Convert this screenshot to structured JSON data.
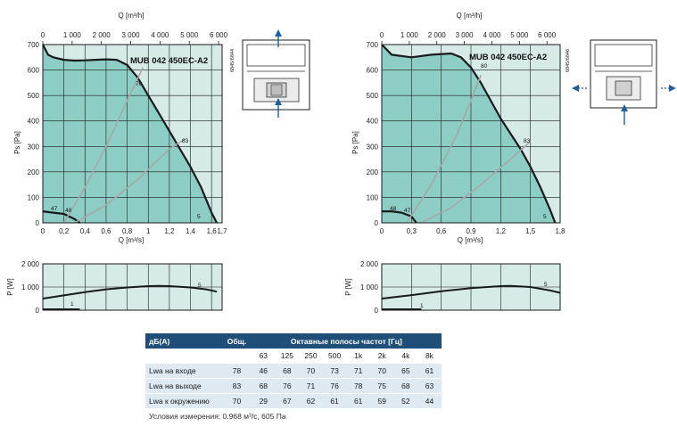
{
  "charts": [
    {
      "model_label": "MUB 042 450EC-A2",
      "code": "6845/6844",
      "q_top_label": "Q [m³/h]",
      "q_top_ticks": [
        "0",
        "1 000",
        "2 000",
        "3 000",
        "4 000",
        "5 000",
        "6 000"
      ],
      "ps_label": "Ps [Pa]",
      "ps_ticks": [
        "0",
        "100",
        "200",
        "300",
        "400",
        "500",
        "600",
        "700"
      ],
      "q_bottom_label": "Q [m³/s]",
      "q_bottom_ticks": [
        "0",
        "0,2",
        "0,4",
        "0,6",
        "0,8",
        "1",
        "1,2",
        "1,4",
        "1,6",
        "1,7"
      ],
      "p_label": "P [W]",
      "p_ticks": [
        "0",
        "1 000",
        "2 000"
      ],
      "labels": [
        "47",
        "48",
        "76",
        "83",
        "5",
        "5",
        "1"
      ]
    },
    {
      "model_label": "MUB 042 450EC-A2",
      "code": "6845/6846",
      "q_top_label": "Q [m³/h]",
      "q_top_ticks": [
        "0",
        "1 000",
        "2 000",
        "3 000",
        "4 000",
        "5 000",
        "6 000"
      ],
      "ps_label": "Ps [Pa]",
      "ps_ticks": [
        "0",
        "100",
        "200",
        "300",
        "400",
        "500",
        "600",
        "700"
      ],
      "q_bottom_label": "Q [m³/s]",
      "q_bottom_ticks": [
        "0",
        "0,3",
        "0,6",
        "0,9",
        "1,2",
        "1,5",
        "1,8"
      ],
      "p_label": "P [W]",
      "p_ticks": [
        "0",
        "1 000",
        "2 000"
      ],
      "labels": [
        "48",
        "47",
        "80",
        "83",
        "5",
        "5",
        "1"
      ]
    }
  ],
  "chart_data": [
    {
      "type": "line",
      "title": "MUB 042 450EC-A2",
      "xlabel": "Q [m³/s]",
      "ylabel": "Ps [Pa]",
      "xlim": [
        0,
        1.7
      ],
      "ylim": [
        0,
        700
      ],
      "series": [
        {
          "x": [
            0,
            0.05,
            0.1,
            0.2,
            0.3,
            0.4,
            0.5,
            0.6,
            0.7,
            0.8,
            0.9,
            1.0,
            1.1,
            1.2,
            1.3,
            1.4,
            1.5,
            1.6,
            1.65
          ],
          "y": [
            700,
            660,
            650,
            640,
            637,
            638,
            640,
            642,
            640,
            620,
            570,
            500,
            430,
            360,
            290,
            220,
            140,
            40,
            0
          ]
        },
        {
          "x": [
            0,
            0.1,
            0.2,
            0.3,
            0.35
          ],
          "y": [
            45,
            40,
            35,
            15,
            0
          ]
        },
        {
          "x": [
            0.2,
            0.4,
            0.6,
            0.8,
            0.95
          ],
          "y": [
            0,
            140,
            300,
            480,
            610
          ]
        },
        {
          "x": [
            0.3,
            0.6,
            0.9,
            1.2,
            1.35
          ],
          "y": [
            0,
            70,
            170,
            290,
            330
          ]
        }
      ]
    },
    {
      "type": "line",
      "title": "",
      "xlabel": "Q [m³/s]",
      "ylabel": "P [W]",
      "xlim": [
        0,
        1.7
      ],
      "ylim": [
        0,
        2000
      ],
      "series": [
        {
          "x": [
            0,
            0.2,
            0.4,
            0.6,
            0.8,
            1.0,
            1.1,
            1.2,
            1.4,
            1.55,
            1.65
          ],
          "y": [
            500,
            640,
            780,
            900,
            980,
            1040,
            1050,
            1040,
            980,
            900,
            800
          ]
        },
        {
          "x": [
            0,
            0.1,
            0.2,
            0.3,
            0.35
          ],
          "y": [
            40,
            40,
            40,
            40,
            40
          ]
        }
      ]
    },
    {
      "type": "line",
      "title": "MUB 042 450EC-A2",
      "xlabel": "Q [m³/s]",
      "ylabel": "Ps [Pa]",
      "xlim": [
        0,
        1.8
      ],
      "ylim": [
        0,
        700
      ],
      "series": [
        {
          "x": [
            0,
            0.05,
            0.1,
            0.3,
            0.5,
            0.7,
            0.8,
            0.9,
            1.0,
            1.1,
            1.2,
            1.3,
            1.4,
            1.5,
            1.6,
            1.7,
            1.75
          ],
          "y": [
            700,
            680,
            660,
            650,
            660,
            665,
            650,
            610,
            550,
            480,
            410,
            350,
            290,
            220,
            140,
            50,
            0
          ]
        },
        {
          "x": [
            0,
            0.1,
            0.2,
            0.3,
            0.35
          ],
          "y": [
            45,
            45,
            40,
            25,
            0
          ]
        },
        {
          "x": [
            0.25,
            0.5,
            0.75,
            0.9,
            1.0
          ],
          "y": [
            0,
            150,
            340,
            480,
            580
          ]
        },
        {
          "x": [
            0.4,
            0.7,
            1.0,
            1.3,
            1.5
          ],
          "y": [
            0,
            60,
            150,
            250,
            320
          ]
        }
      ]
    },
    {
      "type": "line",
      "title": "",
      "xlabel": "Q [m³/s]",
      "ylabel": "P [W]",
      "xlim": [
        0,
        1.8
      ],
      "ylim": [
        0,
        2000
      ],
      "series": [
        {
          "x": [
            0,
            0.3,
            0.6,
            0.9,
            1.2,
            1.3,
            1.5,
            1.7,
            1.8
          ],
          "y": [
            500,
            650,
            820,
            950,
            1040,
            1050,
            1000,
            850,
            750
          ]
        },
        {
          "x": [
            0,
            0.1,
            0.2,
            0.3,
            0.4
          ],
          "y": [
            40,
            40,
            40,
            40,
            40
          ]
        }
      ]
    }
  ],
  "table": {
    "header_left": "дБ(A)",
    "header_total": "Общ.",
    "header_bands": "Октавные полосы частот [Гц]",
    "bands": [
      "63",
      "125",
      "250",
      "500",
      "1k",
      "2k",
      "4k",
      "8k"
    ],
    "rows": [
      {
        "label": "Lwa на входе",
        "total": "78",
        "values": [
          "46",
          "68",
          "70",
          "73",
          "71",
          "70",
          "65",
          "61"
        ]
      },
      {
        "label": "Lwa на выходе",
        "total": "83",
        "values": [
          "68",
          "76",
          "71",
          "76",
          "78",
          "75",
          "68",
          "63"
        ]
      },
      {
        "label": "Lwa к окружению",
        "total": "70",
        "values": [
          "29",
          "67",
          "62",
          "61",
          "61",
          "59",
          "52",
          "44"
        ]
      }
    ],
    "conditions": "Условия измерения: 0.968 м³/с, 605 Па"
  },
  "colors": {
    "plot_bg": "#d6ebe8",
    "fill": "#8ccdc6",
    "grid": "#1a1a1a",
    "curve": "#1a1a1a",
    "secondary_curve": "#a8a8a8",
    "arrow": "#1f5f9f",
    "table_header": "#1f4e79",
    "table_row": "#dfe9f2"
  }
}
